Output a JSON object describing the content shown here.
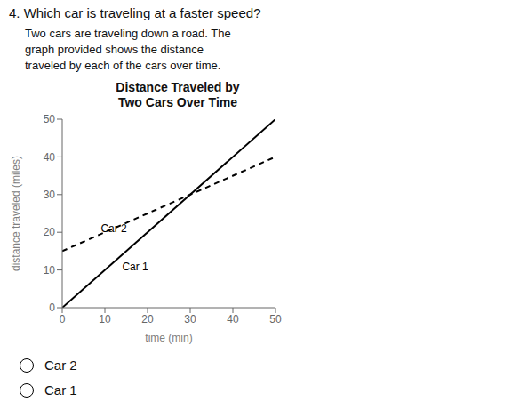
{
  "chart_data": {
    "type": "line",
    "title": "Distance Traveled by\nTwo Cars Over Time",
    "x_label": "time (min)",
    "y_label": "distance traveled (miles)",
    "xlim": [
      0,
      50
    ],
    "ylim": [
      0,
      50
    ],
    "xticks": [
      0,
      10,
      20,
      30,
      40,
      50
    ],
    "yticks": [
      0,
      10,
      20,
      30,
      40,
      50
    ],
    "grid": false,
    "series": [
      {
        "name": "Car 1",
        "x": [
          0,
          50
        ],
        "values": [
          0,
          50
        ],
        "color": "black",
        "line_style": "solid"
      },
      {
        "name": "Car 2",
        "x": [
          0,
          50
        ],
        "values": [
          15,
          40
        ],
        "color": "black",
        "line_style": "dashed"
      }
    ],
    "annotations": [
      {
        "text": "Car 1",
        "x": 13,
        "y": 11
      },
      {
        "text": "Car 2",
        "x": 8,
        "y": 21
      }
    ]
  },
  "question": "4. Which car is traveling at a faster speed?",
  "description": [
    "Two cars are traveling down a road. The",
    "graph provided shows the distance",
    "traveled by each of the cars over time."
  ],
  "answer_options": [
    "Car 2",
    "Car 1"
  ]
}
